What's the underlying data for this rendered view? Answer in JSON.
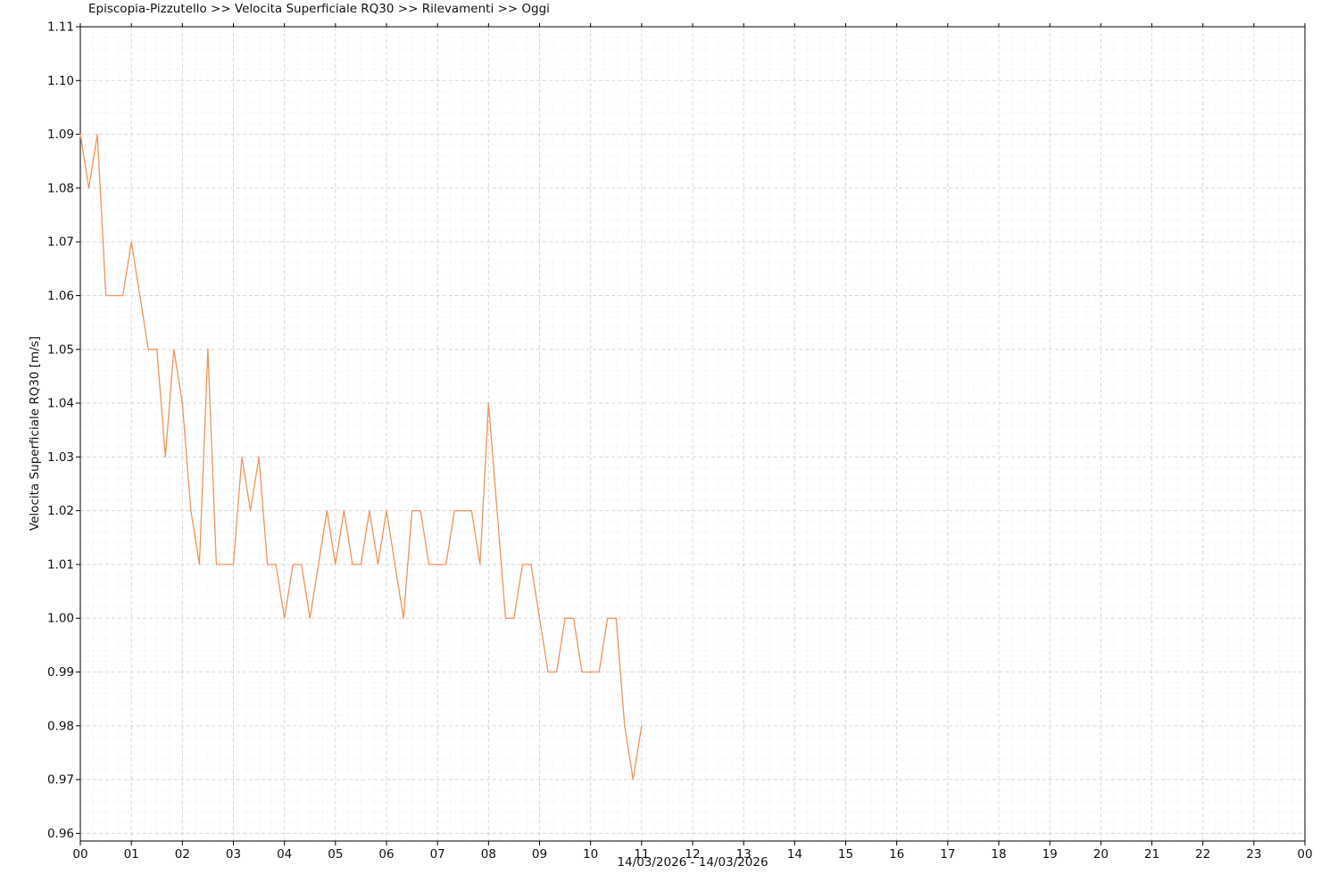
{
  "header": {
    "title": "Episcopia-Pizzutello >> Velocita Superficiale RQ30 >> Rilevamenti >> Oggi"
  },
  "chart_data": {
    "type": "line",
    "title": "Episcopia-Pizzutello >> Velocita Superficiale RQ30 >> Rilevamenti >> Oggi",
    "ylabel": "Velocita Superficiale RQ30 [m/s]",
    "xlabel": "14/03/2026 - 14/03/2026",
    "legend_position": "none",
    "grid": {
      "major": true,
      "minor": true
    },
    "ylim": [
      0.96,
      1.11
    ],
    "xlim_hours": [
      0,
      24
    ],
    "y_axis": {
      "step": 0.01,
      "tick_labels": [
        "0.96",
        "0.97",
        "0.98",
        "0.99",
        "1.00",
        "1.01",
        "1.02",
        "1.03",
        "1.04",
        "1.05",
        "1.06",
        "1.07",
        "1.08",
        "1.09",
        "1.10",
        "1.11"
      ]
    },
    "x_axis": {
      "tick_labels": [
        "00",
        "01",
        "02",
        "03",
        "04",
        "05",
        "06",
        "07",
        "08",
        "09",
        "10",
        "11",
        "12",
        "13",
        "14",
        "15",
        "16",
        "17",
        "18",
        "19",
        "20",
        "21",
        "22",
        "23",
        "00"
      ]
    },
    "series": [
      {
        "name": "Velocita Superficiale RQ30",
        "unit": "m/s",
        "color": "#f2925a",
        "times": [
          "00:00",
          "00:10",
          "00:20",
          "00:30",
          "00:40",
          "00:50",
          "01:00",
          "01:10",
          "01:20",
          "01:30",
          "01:40",
          "01:50",
          "02:00",
          "02:10",
          "02:20",
          "02:30",
          "02:40",
          "02:50",
          "03:00",
          "03:10",
          "03:20",
          "03:30",
          "03:40",
          "03:50",
          "04:00",
          "04:10",
          "04:20",
          "04:30",
          "04:40",
          "04:50",
          "05:00",
          "05:10",
          "05:20",
          "05:30",
          "05:40",
          "05:50",
          "06:00",
          "06:10",
          "06:20",
          "06:30",
          "06:40",
          "06:50",
          "07:00",
          "07:10",
          "07:20",
          "07:30",
          "07:40",
          "07:50",
          "08:00",
          "08:10",
          "08:20",
          "08:30",
          "08:40",
          "08:50",
          "09:00",
          "09:10",
          "09:20",
          "09:30",
          "09:40",
          "09:50",
          "10:00",
          "10:10",
          "10:20",
          "10:30",
          "10:40",
          "10:50",
          "11:00"
        ],
        "values": [
          1.09,
          1.08,
          1.09,
          1.06,
          1.06,
          1.06,
          1.07,
          1.06,
          1.05,
          1.05,
          1.03,
          1.05,
          1.04,
          1.02,
          1.01,
          1.05,
          1.01,
          1.01,
          1.01,
          1.03,
          1.02,
          1.03,
          1.01,
          1.01,
          1.0,
          1.01,
          1.01,
          1.0,
          1.01,
          1.02,
          1.01,
          1.02,
          1.01,
          1.01,
          1.02,
          1.01,
          1.02,
          1.01,
          1.0,
          1.02,
          1.02,
          1.01,
          1.01,
          1.01,
          1.02,
          1.02,
          1.02,
          1.01,
          1.04,
          1.02,
          1.0,
          1.0,
          1.01,
          1.01,
          1.0,
          0.99,
          0.99,
          1.0,
          1.0,
          0.99,
          0.99,
          0.99,
          1.0,
          1.0,
          0.98,
          0.97,
          0.98
        ]
      }
    ]
  },
  "colors": {
    "line": "#f2925a",
    "grid_major": "#d8d8d8",
    "grid_minor": "#ededed",
    "axis": "#000000",
    "text": "#111111",
    "background": "#ffffff"
  }
}
